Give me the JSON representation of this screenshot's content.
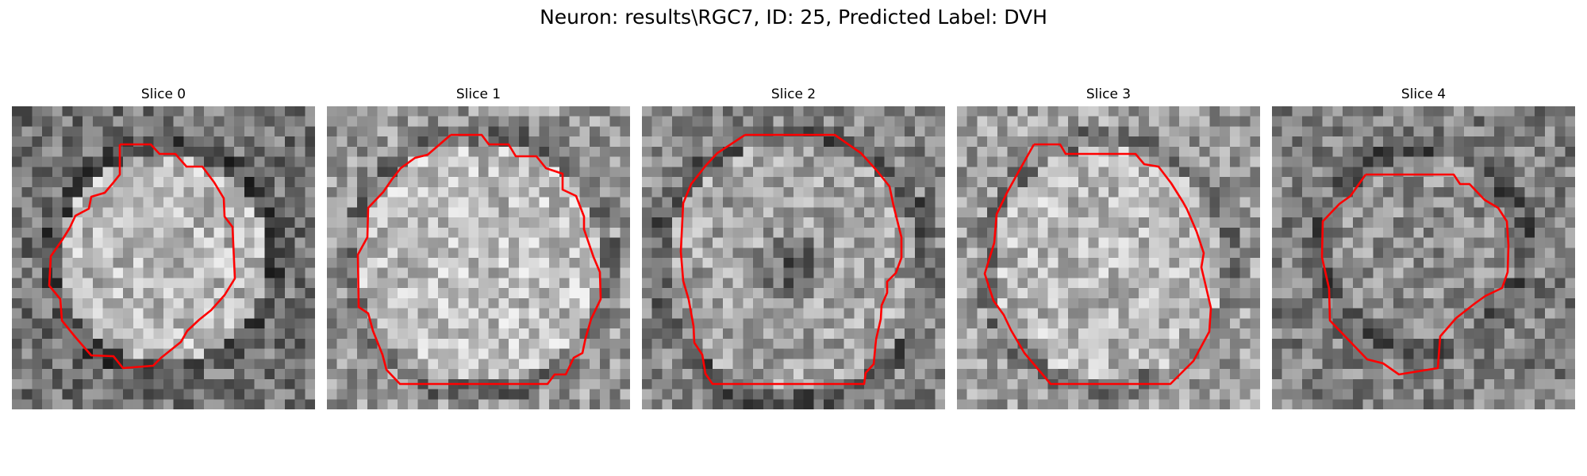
{
  "figure": {
    "title": "Neuron: results\\RGC7, ID: 25, Predicted Label: DVH"
  },
  "slices": [
    {
      "title": "Slice 0",
      "interior_brightness": 0.72,
      "surround_brightness": 0.45
    },
    {
      "title": "Slice 1",
      "interior_brightness": 0.74,
      "surround_brightness": 0.6
    },
    {
      "title": "Slice 2",
      "interior_brightness": 0.64,
      "surround_brightness": 0.52
    },
    {
      "title": "Slice 3",
      "interior_brightness": 0.72,
      "surround_brightness": 0.62
    },
    {
      "title": "Slice 4",
      "interior_brightness": 0.56,
      "surround_brightness": 0.5
    }
  ],
  "colors": {
    "contour": "#ff0000",
    "background": "#ffffff"
  }
}
